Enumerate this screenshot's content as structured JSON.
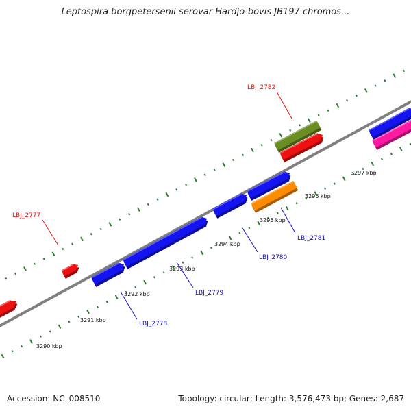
{
  "title": "Leptospira borgpetersenii serovar Hardjo-bovis JB197 chromos...",
  "footer": {
    "accession": "Accession: NC_008510",
    "summary": "Topology: circular; Length: 3,576,473 bp; Genes: 2,687"
  },
  "colors": {
    "backbone": "#808080",
    "tick": "#2e7d32",
    "blue_gene": "#1414f0",
    "red_gene": "#ee1111",
    "orange_gene": "#ff8c00",
    "olive_gene": "#6b8e23",
    "pink_gene": "#ff1aa3",
    "label_red": "#e01010",
    "label_blue": "#1010c0"
  },
  "tick_labels": [
    "3290 kbp",
    "3291 kbp",
    "3292 kbp",
    "3293 kbp",
    "3294 kbp",
    "3295 kbp",
    "3296 kbp",
    "3297 kbp"
  ],
  "gene_labels": [
    {
      "text": "LBJ_2777",
      "color": "label_red"
    },
    {
      "text": "LBJ_2778",
      "color": "label_blue"
    },
    {
      "text": "LBJ_2779",
      "color": "label_blue"
    },
    {
      "text": "LBJ_2780",
      "color": "label_blue"
    },
    {
      "text": "LBJ_2781",
      "color": "label_blue"
    },
    {
      "text": "LBJ_2782",
      "color": "label_red"
    }
  ],
  "genes": [
    {
      "color": "red_gene"
    },
    {
      "color": "red_gene"
    },
    {
      "color": "blue_gene"
    },
    {
      "color": "blue_gene"
    },
    {
      "color": "blue_gene"
    },
    {
      "color": "blue_gene"
    },
    {
      "color": "orange_gene"
    },
    {
      "color": "olive_gene"
    },
    {
      "color": "red_gene"
    },
    {
      "color": "blue_gene"
    },
    {
      "color": "pink_gene"
    }
  ]
}
